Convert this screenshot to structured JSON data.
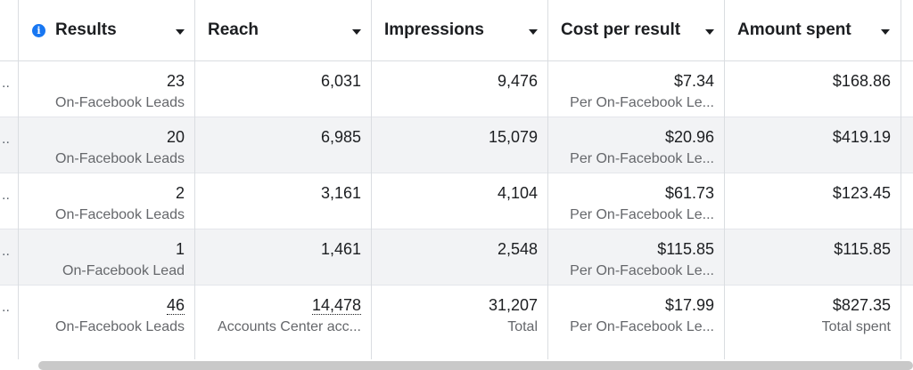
{
  "headers": {
    "results": "Results",
    "reach": "Reach",
    "impressions": "Impressions",
    "cost_per_result": "Cost per result",
    "amount_spent": "Amount spent"
  },
  "info_icon": "info-icon",
  "colors": {
    "accent": "#1877f2",
    "subtext": "#65676b",
    "row_alt": "#f2f3f5"
  },
  "rows": [
    {
      "results": "23",
      "results_sub": "On-Facebook Leads",
      "reach": "6,031",
      "impressions": "9,476",
      "cost": "$7.34",
      "cost_sub": "Per On-Facebook Le...",
      "spent": "$168.86"
    },
    {
      "results": "20",
      "results_sub": "On-Facebook Leads",
      "reach": "6,985",
      "impressions": "15,079",
      "cost": "$20.96",
      "cost_sub": "Per On-Facebook Le...",
      "spent": "$419.19"
    },
    {
      "results": "2",
      "results_sub": "On-Facebook Leads",
      "reach": "3,161",
      "impressions": "4,104",
      "cost": "$61.73",
      "cost_sub": "Per On-Facebook Le...",
      "spent": "$123.45"
    },
    {
      "results": "1",
      "results_sub": "On-Facebook Lead",
      "reach": "1,461",
      "impressions": "2,548",
      "cost": "$115.85",
      "cost_sub": "Per On-Facebook Le...",
      "spent": "$115.85"
    }
  ],
  "totals": {
    "results": "46",
    "results_sub": "On-Facebook Leads",
    "reach": "14,478",
    "reach_sub": "Accounts Center acc...",
    "impressions": "31,207",
    "impressions_sub": "Total",
    "cost": "$17.99",
    "cost_sub": "Per On-Facebook Le...",
    "spent": "$827.35",
    "spent_sub": "Total spent"
  },
  "row_overflow_marker": ".."
}
